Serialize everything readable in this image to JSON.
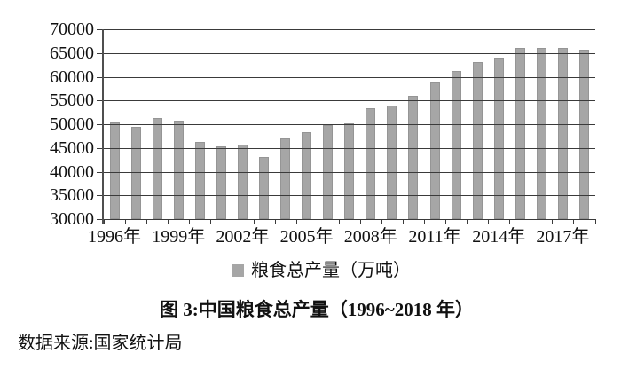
{
  "figure": {
    "title": "图 3:中国粮食总产量（1996~2018 年）",
    "source_note": "数据来源:国家统计局",
    "legend": {
      "label": "粮食总产量（万吨）"
    }
  },
  "colors": {
    "background": "#ffffff",
    "text": "#111111",
    "bar_fill": "#a6a6a6",
    "legend_swatch": "#a6a6a6",
    "gridline": "#3a3a3a",
    "axis": "#4f4f4f"
  },
  "chart_data": {
    "type": "bar",
    "title": "图 3:中国粮食总产量（1996~2018 年）",
    "series_name": "粮食总产量（万吨）",
    "unit": "万吨",
    "x": [
      1996,
      1997,
      1998,
      1999,
      2000,
      2001,
      2002,
      2003,
      2004,
      2005,
      2006,
      2007,
      2008,
      2009,
      2010,
      2011,
      2012,
      2013,
      2014,
      2015,
      2016,
      2017,
      2018
    ],
    "values": [
      50453.5,
      49417.1,
      51229.5,
      50838.6,
      46217.5,
      45263.7,
      45705.8,
      43069.5,
      46946.9,
      48402.2,
      49804.2,
      50160.3,
      53434.3,
      53940.9,
      55911.3,
      58849.3,
      61222.6,
      63048.2,
      63964.8,
      66060.3,
      66043.5,
      66160.7,
      65789.2
    ],
    "ylim": [
      30000,
      70000
    ],
    "yticks": [
      70000,
      65000,
      60000,
      55000,
      50000,
      45000,
      40000,
      35000,
      30000
    ],
    "xtick_labels": [
      "1996年",
      "1999年",
      "2002年",
      "2005年",
      "2008年",
      "2011年",
      "2014年",
      "2017年"
    ],
    "xtick_bar_indices": [
      0,
      3,
      6,
      9,
      12,
      15,
      18,
      21
    ],
    "grid": "horizontal",
    "gridlines_over_bars": true,
    "legend_position": "bottom-center"
  }
}
